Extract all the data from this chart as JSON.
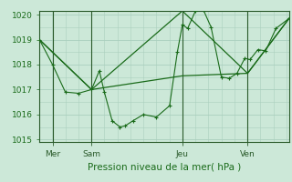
{
  "bg_color": "#cce8d8",
  "grid_color": "#aacfbe",
  "line_color": "#1a6b1a",
  "axis_color": "#2a5a2a",
  "label_color": "#1a6b1a",
  "ylabel_min": 1015,
  "ylabel_max": 1020,
  "xlabel": "Pression niveau de la mer( hPa )",
  "xtick_labels": [
    "Mer",
    "Sam",
    "Jeu",
    "Ven"
  ],
  "xtick_positions": [
    0.42,
    1.67,
    4.58,
    6.67
  ],
  "series1_x": [
    0.0,
    0.42,
    0.83,
    1.25,
    1.67,
    1.92,
    2.08,
    2.33,
    2.58,
    2.75,
    3.0,
    3.33,
    3.75,
    4.17,
    4.42,
    4.58,
    4.75,
    5.0,
    5.25,
    5.5,
    5.83,
    6.08,
    6.33,
    6.58,
    6.75,
    7.0,
    7.25,
    7.58,
    8.0
  ],
  "series1_y": [
    1019.0,
    1018.0,
    1016.9,
    1016.85,
    1017.0,
    1017.75,
    1016.9,
    1015.75,
    1015.5,
    1015.55,
    1015.75,
    1016.0,
    1015.9,
    1016.35,
    1018.5,
    1019.6,
    1019.45,
    1020.15,
    1020.2,
    1019.5,
    1017.5,
    1017.45,
    1017.65,
    1018.25,
    1018.2,
    1018.6,
    1018.55,
    1019.45,
    1019.85
  ],
  "series2_x": [
    0.0,
    1.67,
    4.58,
    6.67,
    8.0
  ],
  "series2_y": [
    1019.0,
    1017.0,
    1017.55,
    1017.65,
    1019.85
  ],
  "series3_x": [
    0.0,
    1.67,
    4.58,
    6.67,
    8.0
  ],
  "series3_y": [
    1019.0,
    1017.0,
    1020.15,
    1017.65,
    1019.85
  ],
  "xmin": 0.0,
  "xmax": 8.0,
  "figwidth": 3.2,
  "figheight": 2.0,
  "dpi": 100
}
